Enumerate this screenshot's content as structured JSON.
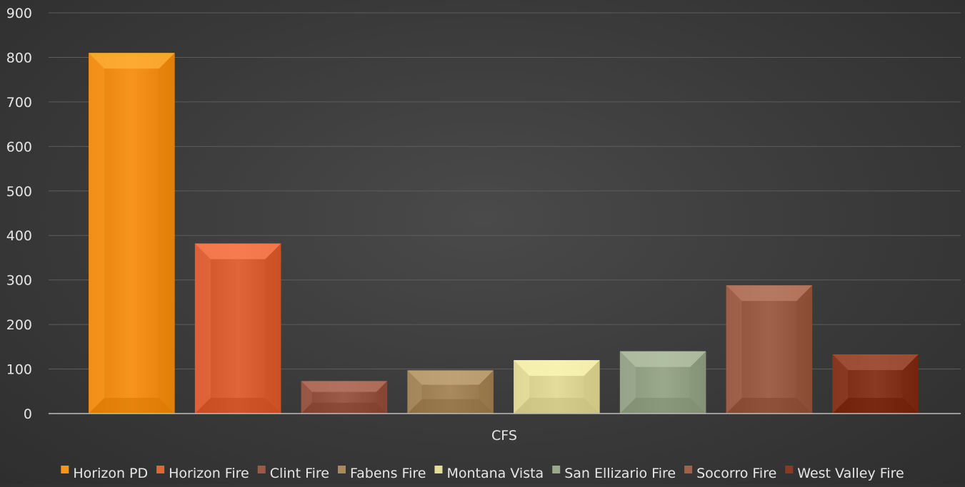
{
  "chart_data": {
    "type": "bar",
    "title": "",
    "xlabel": "CFS",
    "ylabel": "",
    "categories": [
      "CFS"
    ],
    "ylim": [
      0,
      900
    ],
    "yticks": [
      "0",
      "100",
      "200",
      "300",
      "400",
      "500",
      "600",
      "700",
      "800",
      "900"
    ],
    "grid": true,
    "legend_position": "bottom",
    "series": [
      {
        "name": "Horizon PD",
        "values": [
          810
        ],
        "color": "#f7941d"
      },
      {
        "name": "Horizon Fire",
        "values": [
          382
        ],
        "color": "#e0663a"
      },
      {
        "name": "Clint Fire",
        "values": [
          73
        ],
        "color": "#9c5a48"
      },
      {
        "name": "Fabens Fire",
        "values": [
          97
        ],
        "color": "#a88a5e"
      },
      {
        "name": "Montana Vista",
        "values": [
          120
        ],
        "color": "#e3dc9a"
      },
      {
        "name": "San Ellizario Fire",
        "values": [
          140
        ],
        "color": "#9aa88c"
      },
      {
        "name": "Socorro Fire",
        "values": [
          288
        ],
        "color": "#a0624a"
      },
      {
        "name": "West Valley Fire",
        "values": [
          133
        ],
        "color": "#8a3a22"
      }
    ]
  }
}
